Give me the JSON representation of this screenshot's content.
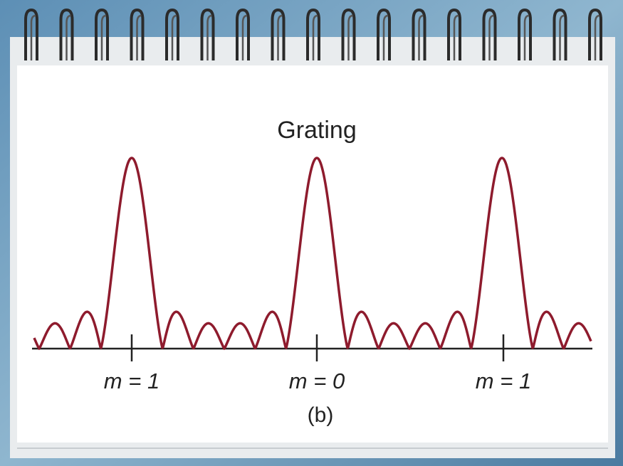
{
  "figure": {
    "title": "Grating",
    "order_labels": [
      "m = 1",
      "m = 0",
      "m = 1"
    ],
    "caption": "(b)"
  }
}
